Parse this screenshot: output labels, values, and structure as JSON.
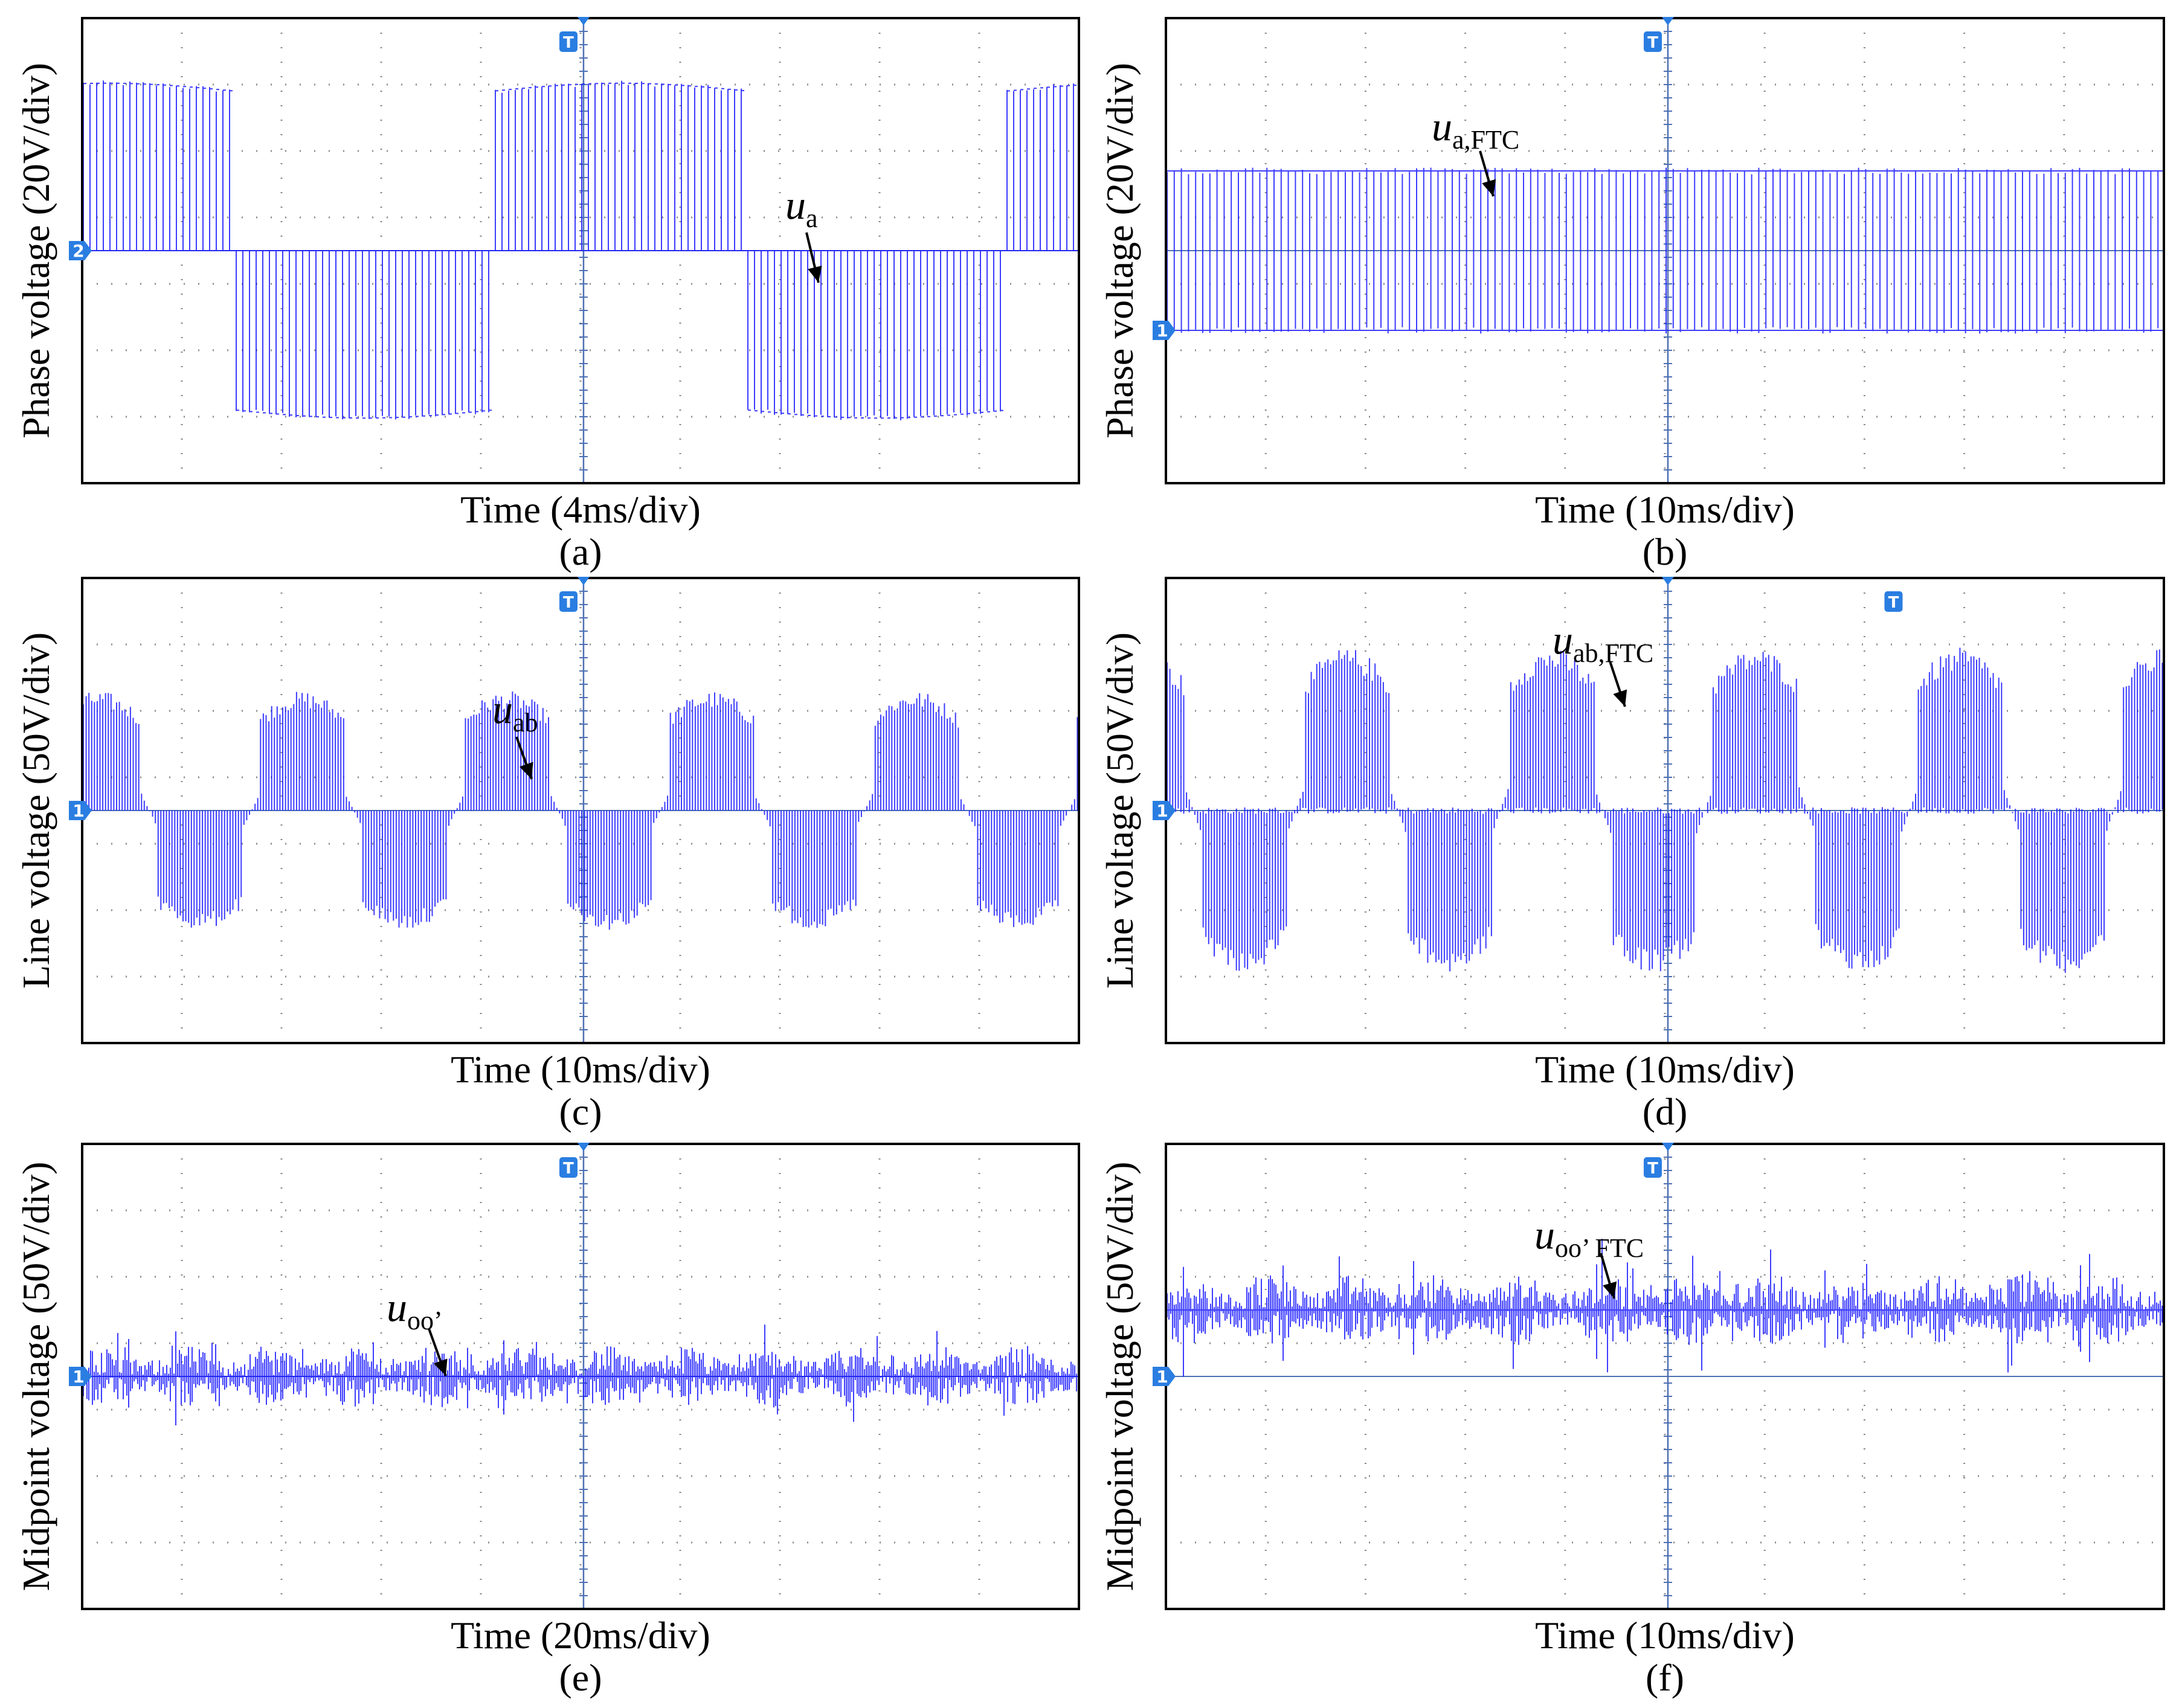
{
  "chart_data": [
    {
      "id": "a",
      "type": "line",
      "caption": "(a)",
      "xlabel": "Time (4ms/div)",
      "ylabel": "Phase voltage (20V/div)",
      "channel_marker": "2",
      "trigger_marker": "T",
      "annotation": {
        "base": "u",
        "sub": "a"
      },
      "divisions": {
        "x": 10,
        "y": 7
      },
      "ylim_div": [
        -3.5,
        3.5
      ],
      "trace": {
        "kind": "pwm_phase",
        "period_div": 5.15,
        "phase_div": 1.05,
        "levels_div": [
          2.4,
          0,
          -2.4
        ],
        "pulses_per_div": 15
      },
      "trace_color": "#1a1aff"
    },
    {
      "id": "b",
      "type": "line",
      "caption": "(b)",
      "xlabel": "Time (10ms/div)",
      "ylabel": "Phase voltage (20V/div)",
      "channel_marker": "1",
      "trigger_marker": "T",
      "annotation": {
        "base": "u",
        "sub": "a,FTC"
      },
      "divisions": {
        "x": 10,
        "y": 7
      },
      "ylim_div": [
        -3.5,
        3.5
      ],
      "trace": {
        "kind": "pwm_two_level",
        "high_div": 1.2,
        "low_div": -1.2,
        "pulses_per_div": 14
      },
      "trace_color": "#1a1aff"
    },
    {
      "id": "c",
      "type": "line",
      "caption": "(c)",
      "xlabel": "Time (10ms/div)",
      "ylabel": "Line voltage (50V/div)",
      "channel_marker": "1",
      "trigger_marker": "T",
      "annotation": {
        "base": "u",
        "sub": "ab"
      },
      "divisions": {
        "x": 10,
        "y": 7
      },
      "ylim_div": [
        -3.5,
        3.5
      ],
      "trace": {
        "kind": "pwm_line",
        "period_div": 2.05,
        "phase_div": 0.35,
        "amplitude_div": 1.8,
        "pulses_per_div": 18
      },
      "trace_color": "#1a1aff"
    },
    {
      "id": "d",
      "type": "line",
      "caption": "(d)",
      "xlabel": "Time (10ms/div)",
      "ylabel": "Line voltage (50V/div)",
      "channel_marker": "1",
      "trigger_marker": "T",
      "annotation": {
        "base": "u",
        "sub": "ab,FTC"
      },
      "divisions": {
        "x": 10,
        "y": 7
      },
      "ylim_div": [
        -3.5,
        3.5
      ],
      "trace": {
        "kind": "pwm_line_ftc",
        "period_div": 2.05,
        "phase_div": 0.75,
        "amplitude_div": 2.45,
        "pulses_per_div": 18
      },
      "trace_color": "#1a1aff"
    },
    {
      "id": "e",
      "type": "line",
      "caption": "(e)",
      "xlabel": "Time (20ms/div)",
      "ylabel": "Midpoint voltage (50V/div)",
      "channel_marker": "1",
      "trigger_marker": "T",
      "annotation": {
        "base": "u",
        "sub": "oo’"
      },
      "divisions": {
        "x": 10,
        "y": 7
      },
      "ylim_div": [
        -3.5,
        3.5
      ],
      "trace": {
        "kind": "noise_band",
        "center_div": 0,
        "band_div": 0.35,
        "spike_div": 0.65
      },
      "trace_color": "#1a1aff"
    },
    {
      "id": "f",
      "type": "line",
      "caption": "(f)",
      "xlabel": "Time (10ms/div)",
      "ylabel": "Midpoint voltage (50V/div)",
      "channel_marker": "1",
      "trigger_marker": "T",
      "annotation": {
        "base": "u",
        "sub": "oo’ FTC"
      },
      "divisions": {
        "x": 10,
        "y": 7
      },
      "ylim_div": [
        -3.5,
        3.5
      ],
      "trace": {
        "kind": "noise_band",
        "center_div": 1.0,
        "band_div": 0.4,
        "spike_div": 0.8
      },
      "trace_color": "#1a1aff"
    }
  ]
}
